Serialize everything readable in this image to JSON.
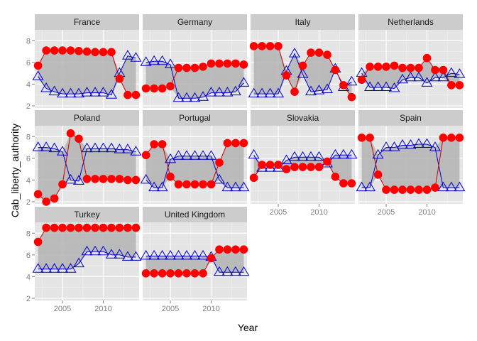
{
  "chart_data": {
    "type": "line",
    "facet": "country",
    "xlabel": "Year",
    "ylabel": "Cab_liberty_authority",
    "ylim": [
      1.8,
      9.0
    ],
    "xlim": [
      2001.6,
      2014.4
    ],
    "yticks": [
      2,
      4,
      6,
      8
    ],
    "xticks": [
      2005,
      2010
    ],
    "grid": true,
    "colors": {
      "panel_bg": "#e5e5e5",
      "strip_bg": "#cccccc",
      "grid": "#ffffff",
      "band": "#b3b3b3",
      "circle_series": "#ff0000",
      "circle_line": "#cc0000",
      "triangle_series": "#0000cc"
    },
    "x": [
      2002,
      2003,
      2004,
      2005,
      2006,
      2007,
      2008,
      2009,
      2010,
      2011,
      2012,
      2013,
      2014
    ],
    "panels": [
      {
        "country": "France",
        "circles": [
          5.7,
          7.1,
          7.1,
          7.1,
          7.1,
          7.05,
          7.0,
          6.95,
          6.95,
          6.95,
          4.5,
          3.0,
          3.0
        ],
        "triangles": [
          4.7,
          3.6,
          3.3,
          3.1,
          3.1,
          3.1,
          3.2,
          3.2,
          3.2,
          3.0,
          5.0,
          6.6,
          6.4
        ]
      },
      {
        "country": "Germany",
        "circles": [
          3.6,
          3.6,
          3.6,
          3.8,
          5.5,
          5.5,
          5.5,
          5.6,
          5.9,
          5.9,
          5.9,
          5.9,
          5.8
        ],
        "triangles": [
          6.0,
          6.1,
          6.1,
          5.8,
          2.7,
          2.7,
          2.7,
          2.8,
          3.2,
          3.2,
          3.2,
          3.3,
          4.1
        ]
      },
      {
        "country": "Italy",
        "circles": [
          7.5,
          7.5,
          7.5,
          7.5,
          4.8,
          3.3,
          5.7,
          6.9,
          6.9,
          6.7,
          5.3,
          3.9,
          2.8
        ],
        "triangles": [
          3.1,
          3.1,
          3.1,
          3.1,
          5.2,
          6.8,
          4.9,
          3.3,
          3.4,
          3.5,
          5.4,
          3.7,
          4.2
        ]
      },
      {
        "country": "Netherlands",
        "circles": [
          4.4,
          5.6,
          5.6,
          5.6,
          5.7,
          5.5,
          5.5,
          5.5,
          6.4,
          5.3,
          5.3,
          3.9,
          3.9
        ],
        "triangles": [
          5.0,
          3.7,
          3.7,
          3.7,
          3.6,
          4.4,
          4.6,
          4.6,
          4.1,
          4.6,
          4.6,
          5.0,
          4.9
        ]
      },
      {
        "country": "Poland",
        "circles": [
          2.7,
          2.0,
          2.3,
          3.6,
          8.3,
          7.8,
          4.1,
          4.1,
          4.1,
          4.1,
          4.1,
          4.0,
          4.0
        ],
        "triangles": [
          7.0,
          7.0,
          6.9,
          6.6,
          4.0,
          3.9,
          6.9,
          6.9,
          6.9,
          6.9,
          6.8,
          6.8,
          6.6
        ]
      },
      {
        "country": "Portugal",
        "circles": [
          6.3,
          7.3,
          7.3,
          4.3,
          3.6,
          3.6,
          3.6,
          3.6,
          3.6,
          5.6,
          7.4,
          7.4,
          7.4
        ],
        "triangles": [
          4.0,
          3.3,
          3.3,
          5.9,
          6.2,
          6.2,
          6.2,
          6.2,
          6.2,
          4.0,
          3.3,
          3.3,
          3.3
        ]
      },
      {
        "country": "Slovakia",
        "circles": [
          4.2,
          5.4,
          5.4,
          5.4,
          5.0,
          5.2,
          5.2,
          5.2,
          5.2,
          5.7,
          4.3,
          3.7,
          3.7
        ],
        "triangles": [
          6.3,
          5.1,
          5.1,
          5.1,
          5.8,
          6.1,
          6.1,
          6.1,
          6.1,
          5.5,
          6.3,
          6.3,
          6.3
        ]
      },
      {
        "country": "Spain",
        "circles": [
          7.9,
          7.9,
          4.5,
          3.1,
          3.1,
          3.1,
          3.1,
          3.1,
          3.1,
          3.3,
          7.9,
          7.9,
          7.9
        ],
        "triangles": [
          3.3,
          3.3,
          6.3,
          7.0,
          7.0,
          7.2,
          7.2,
          7.3,
          7.3,
          7.0,
          3.3,
          3.3,
          3.3
        ]
      },
      {
        "country": "Turkey",
        "circles": [
          7.2,
          8.5,
          8.5,
          8.5,
          8.5,
          8.5,
          8.5,
          8.5,
          8.5,
          8.5,
          8.5,
          8.5,
          8.5
        ],
        "triangles": [
          4.7,
          4.7,
          4.7,
          4.7,
          4.7,
          5.2,
          6.3,
          6.3,
          6.3,
          6.0,
          6.0,
          5.8,
          5.8
        ]
      },
      {
        "country": "United Kingdom",
        "circles": [
          4.3,
          4.3,
          4.3,
          4.3,
          4.3,
          4.3,
          4.3,
          4.3,
          5.7,
          6.5,
          6.5,
          6.5,
          6.5
        ],
        "triangles": [
          5.9,
          5.9,
          5.9,
          5.9,
          5.9,
          5.9,
          5.9,
          5.9,
          5.8,
          4.4,
          4.4,
          4.4,
          4.4
        ]
      }
    ]
  }
}
